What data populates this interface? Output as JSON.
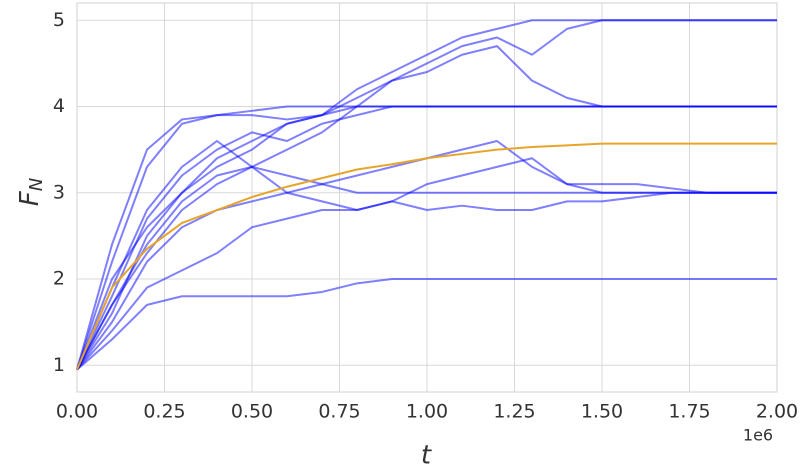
{
  "chart_data": {
    "type": "line",
    "xlabel": "t",
    "ylabel": "F",
    "ylabel_sub": "N",
    "x_offset_label": "1e6",
    "x": [
      0,
      100000,
      200000,
      300000,
      400000,
      500000,
      600000,
      700000,
      800000,
      900000,
      1000000,
      1100000,
      1200000,
      1300000,
      1400000,
      1500000,
      1600000,
      1700000,
      1800000,
      1900000,
      2000000
    ],
    "series": [
      {
        "color": "#0000ff",
        "opacity": 0.5,
        "values": [
          0.95,
          2.0,
          2.6,
          3.0,
          3.3,
          3.5,
          3.8,
          3.9,
          4.2,
          4.4,
          4.6,
          4.8,
          4.9,
          5.0,
          5.0,
          5.0,
          5.0,
          5.0,
          5.0,
          5.0,
          5.0
        ]
      },
      {
        "color": "#0000ff",
        "opacity": 0.5,
        "values": [
          0.95,
          1.7,
          2.3,
          2.8,
          3.1,
          3.3,
          3.5,
          3.7,
          4.0,
          4.3,
          4.5,
          4.7,
          4.8,
          4.6,
          4.9,
          5.0,
          5.0,
          5.0,
          5.0,
          5.0,
          5.0
        ]
      },
      {
        "color": "#0000ff",
        "opacity": 0.5,
        "values": [
          0.95,
          2.4,
          3.5,
          3.85,
          3.9,
          3.95,
          4.0,
          4.0,
          4.0,
          4.0,
          4.0,
          4.0,
          4.0,
          4.0,
          4.0,
          4.0,
          4.0,
          4.0,
          4.0,
          4.0,
          4.0
        ]
      },
      {
        "color": "#0000ff",
        "opacity": 0.5,
        "values": [
          0.95,
          1.6,
          2.5,
          3.0,
          3.4,
          3.6,
          3.8,
          3.9,
          4.1,
          4.3,
          4.4,
          4.6,
          4.7,
          4.3,
          4.1,
          4.0,
          4.0,
          4.0,
          4.0,
          4.0,
          4.0
        ]
      },
      {
        "color": "#0000ff",
        "opacity": 0.5,
        "values": [
          0.95,
          1.8,
          2.7,
          3.2,
          3.5,
          3.7,
          3.6,
          3.8,
          3.9,
          4.0,
          4.0,
          4.0,
          4.0,
          4.0,
          4.0,
          4.0,
          4.0,
          4.0,
          4.0,
          4.0,
          4.0
        ]
      },
      {
        "color": "#0000ff",
        "opacity": 0.5,
        "values": [
          0.95,
          2.2,
          3.3,
          3.8,
          3.9,
          3.9,
          3.85,
          3.9,
          4.0,
          4.0,
          4.0,
          4.0,
          4.0,
          4.0,
          4.0,
          4.0,
          4.0,
          4.0,
          4.0,
          4.0,
          4.0
        ]
      },
      {
        "color": "#0000ff",
        "opacity": 0.5,
        "values": [
          0.95,
          1.5,
          2.2,
          2.6,
          2.8,
          2.9,
          3.0,
          3.1,
          3.2,
          3.3,
          3.4,
          3.5,
          3.6,
          3.3,
          3.1,
          3.0,
          3.0,
          3.0,
          3.0,
          3.0,
          3.0
        ]
      },
      {
        "color": "#0000ff",
        "opacity": 0.5,
        "values": [
          0.95,
          1.4,
          1.9,
          2.1,
          2.3,
          2.6,
          2.7,
          2.8,
          2.8,
          2.9,
          2.8,
          2.85,
          2.8,
          2.8,
          2.9,
          2.9,
          2.95,
          3.0,
          3.0,
          3.0,
          3.0
        ]
      },
      {
        "color": "#0000ff",
        "opacity": 0.5,
        "values": [
          0.95,
          1.7,
          2.4,
          2.9,
          3.2,
          3.3,
          3.2,
          3.1,
          3.0,
          3.0,
          3.0,
          3.0,
          3.0,
          3.0,
          3.0,
          3.0,
          3.0,
          3.0,
          3.0,
          3.0,
          3.0
        ]
      },
      {
        "color": "#0000ff",
        "opacity": 0.5,
        "values": [
          0.95,
          1.9,
          2.8,
          3.3,
          3.6,
          3.3,
          3.0,
          2.9,
          2.8,
          2.9,
          3.1,
          3.2,
          3.3,
          3.4,
          3.1,
          3.1,
          3.1,
          3.05,
          3.0,
          3.0,
          3.0
        ]
      },
      {
        "color": "#0000ff",
        "opacity": 0.5,
        "values": [
          0.95,
          1.3,
          1.7,
          1.8,
          1.8,
          1.8,
          1.8,
          1.85,
          1.95,
          2.0,
          2.0,
          2.0,
          2.0,
          2.0,
          2.0,
          2.0,
          2.0,
          2.0,
          2.0,
          2.0,
          2.0
        ]
      },
      {
        "color": "#e6a52a",
        "opacity": 1,
        "values": [
          0.95,
          1.9,
          2.35,
          2.65,
          2.8,
          2.95,
          3.07,
          3.17,
          3.27,
          3.33,
          3.4,
          3.45,
          3.5,
          3.53,
          3.55,
          3.57,
          3.57,
          3.57,
          3.57,
          3.57,
          3.57
        ]
      }
    ],
    "xlim": [
      0,
      2000000
    ],
    "xticks": [
      {
        "value": 0,
        "label": "0.00"
      },
      {
        "value": 250000,
        "label": "0.25"
      },
      {
        "value": 500000,
        "label": "0.50"
      },
      {
        "value": 750000,
        "label": "0.75"
      },
      {
        "value": 1000000,
        "label": "1.00"
      },
      {
        "value": 1250000,
        "label": "1.25"
      },
      {
        "value": 1500000,
        "label": "1.50"
      },
      {
        "value": 1750000,
        "label": "1.75"
      },
      {
        "value": 2000000,
        "label": "2.00"
      }
    ],
    "ylim": [
      0.69,
      5.2
    ],
    "yticks": [
      1,
      2,
      3,
      4,
      5
    ],
    "grid": true
  }
}
